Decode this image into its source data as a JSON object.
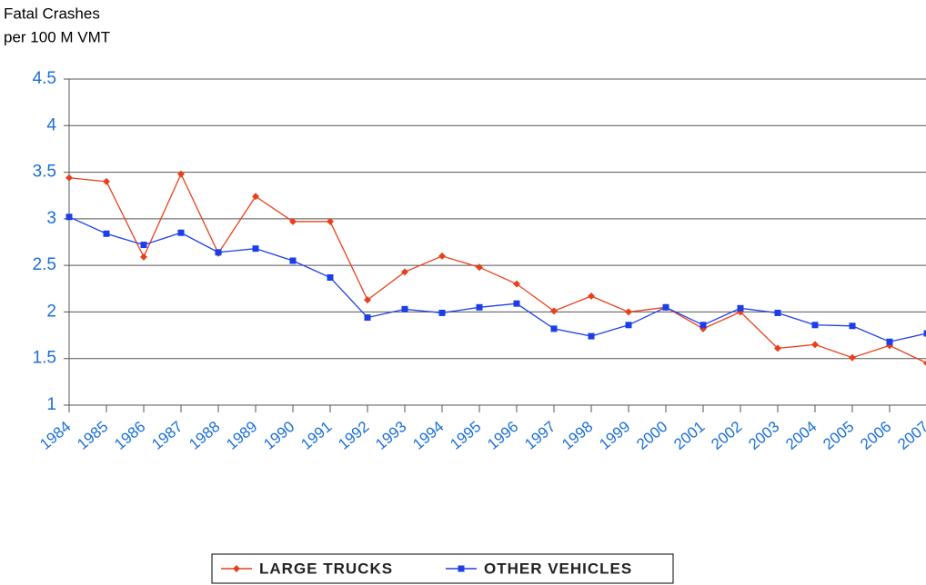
{
  "chart_data": {
    "type": "line",
    "y_axis_label": [
      "Fatal Crashes",
      "per 100 M VMT"
    ],
    "categories": [
      "1984",
      "1985",
      "1986",
      "1987",
      "1988",
      "1989",
      "1990",
      "1991",
      "1992",
      "1993",
      "1994",
      "1995",
      "1996",
      "1997",
      "1998",
      "1999",
      "2000",
      "2001",
      "2002",
      "2003",
      "2004",
      "2005",
      "2006",
      "2007"
    ],
    "series": [
      {
        "name": "LARGE TRUCKS",
        "color": "#e8401c",
        "marker": "diamond",
        "values": [
          3.44,
          3.4,
          2.59,
          3.48,
          2.63,
          3.24,
          2.97,
          2.97,
          2.13,
          2.43,
          2.6,
          2.48,
          2.3,
          2.01,
          2.17,
          2.0,
          2.05,
          1.82,
          2.0,
          1.61,
          1.65,
          1.51,
          1.64,
          1.45
        ]
      },
      {
        "name": "OTHER VEHICLES",
        "color": "#1c3ee8",
        "marker": "square",
        "values": [
          3.02,
          2.84,
          2.72,
          2.85,
          2.64,
          2.68,
          2.55,
          2.37,
          1.94,
          2.03,
          1.99,
          2.05,
          2.09,
          1.82,
          1.74,
          1.86,
          2.05,
          1.86,
          2.04,
          1.99,
          1.86,
          1.85,
          1.68,
          1.77
        ]
      }
    ],
    "ylim": [
      1,
      4.5
    ],
    "yticks": [
      1,
      1.5,
      2,
      2.5,
      3,
      3.5,
      4,
      4.5
    ],
    "grid": true,
    "legend": "bottom"
  }
}
